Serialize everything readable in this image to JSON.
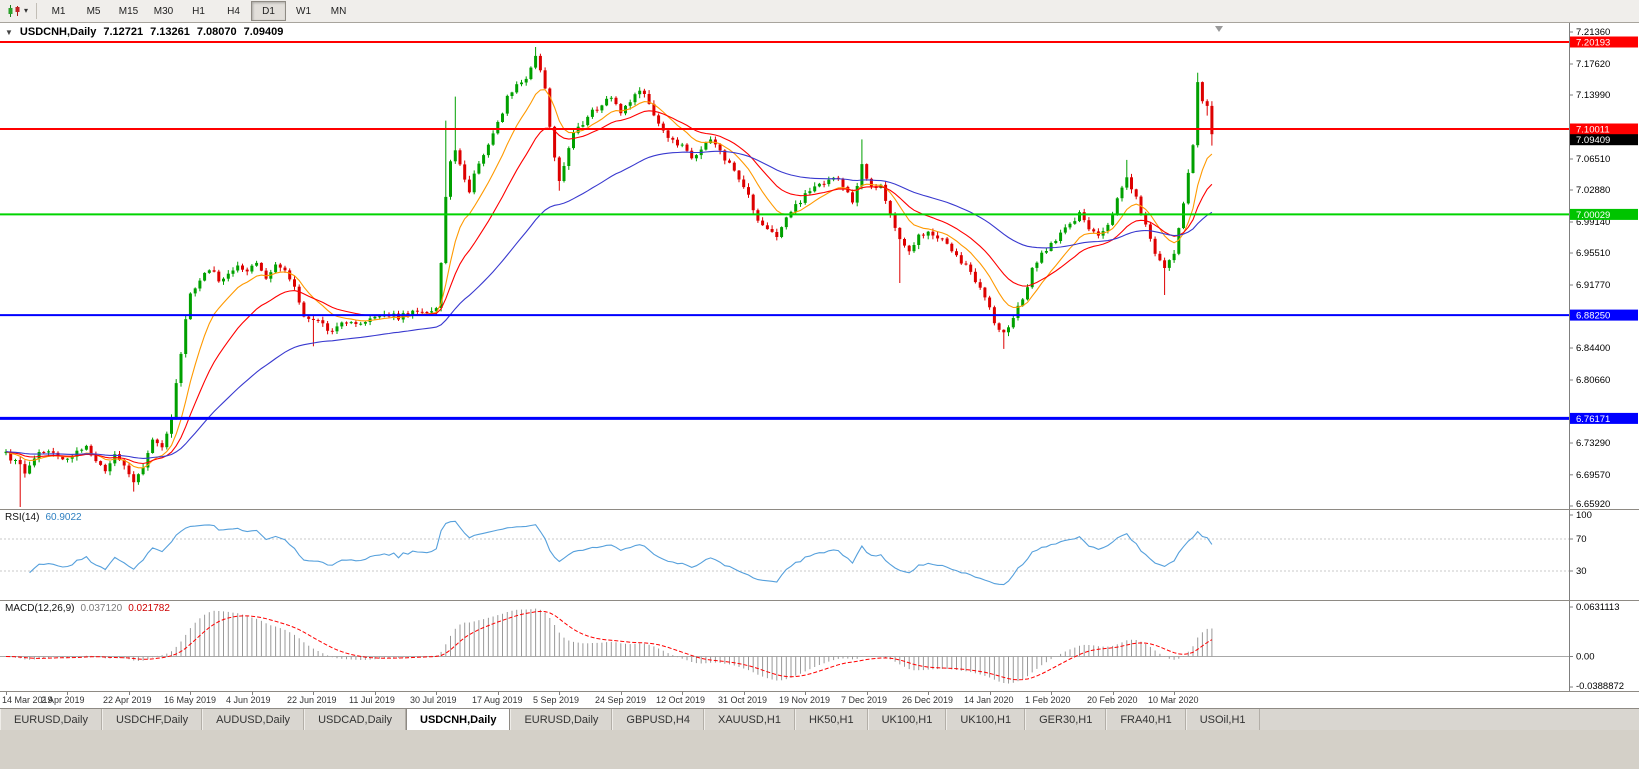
{
  "toolbar": {
    "timeframes": [
      "M1",
      "M5",
      "M15",
      "M30",
      "H1",
      "H4",
      "D1",
      "W1",
      "MN"
    ],
    "active_timeframe": "D1"
  },
  "chart_header": {
    "collapse_icon": "▼",
    "symbol": "USDCNH,Daily",
    "open": "7.12721",
    "high": "7.13261",
    "low": "7.08070",
    "close": "7.09409"
  },
  "price_axis": {
    "plain_labels": [
      {
        "text": "7.21360",
        "price": 7.2136
      },
      {
        "text": "7.17620",
        "price": 7.1762
      },
      {
        "text": "7.13990",
        "price": 7.1399
      },
      {
        "text": "7.06510",
        "price": 7.0651
      },
      {
        "text": "7.02880",
        "price": 7.0288
      },
      {
        "text": "6.99140",
        "price": 6.9914
      },
      {
        "text": "6.95510",
        "price": 6.9551
      },
      {
        "text": "6.91770",
        "price": 6.9177
      },
      {
        "text": "6.84400",
        "price": 6.844
      },
      {
        "text": "6.80660",
        "price": 6.8066
      },
      {
        "text": "6.73290",
        "price": 6.7329
      },
      {
        "text": "6.69570",
        "price": 6.6957
      },
      {
        "text": "6.65920",
        "price": 6.6592
      }
    ],
    "badges": [
      {
        "text": "7.20193",
        "price": 7.20193,
        "bg": "#ff0000",
        "fg": "#ffffff",
        "dy": 0
      },
      {
        "text": "7.10011",
        "price": 7.10011,
        "bg": "#ff0000",
        "fg": "#ffffff",
        "dy": 0
      },
      {
        "text": "7.09409",
        "price": 7.09409,
        "bg": "#000000",
        "fg": "#ffffff",
        "dy": 5.5
      },
      {
        "text": "7.00029",
        "price": 7.00029,
        "bg": "#00c400",
        "fg": "#ffffff",
        "dy": 0
      },
      {
        "text": "6.88250",
        "price": 6.8825,
        "bg": "#0000ff",
        "fg": "#ffffff",
        "dy": 0
      },
      {
        "text": "6.76171",
        "price": 6.76171,
        "bg": "#0000ff",
        "fg": "#ffffff",
        "dy": 0
      }
    ]
  },
  "rsi": {
    "name": "RSI(14)",
    "value": "60.9022",
    "color": "#56a0dc",
    "axis_labels": [
      {
        "text": "100",
        "value": 100
      },
      {
        "text": "70",
        "value": 70
      },
      {
        "text": "30",
        "value": 30
      }
    ]
  },
  "macd": {
    "name": "MACD(12,26,9)",
    "value_main": "0.037120",
    "value_signal": "0.021782",
    "axis_labels": [
      {
        "text": "0.0631113",
        "value": 0.0631113
      },
      {
        "text": "0.00",
        "value": 0
      },
      {
        "text": "-0.0388872",
        "value": -0.0388872
      }
    ]
  },
  "date_axis": {
    "labels": [
      {
        "text": "14 Mar 2019",
        "index": 0
      },
      {
        "text": "2 Apr 2019",
        "index": 13
      },
      {
        "text": "22 Apr 2019",
        "index": 26
      },
      {
        "text": "16 May 2019",
        "index": 39
      },
      {
        "text": "4 Jun 2019",
        "index": 52
      },
      {
        "text": "22 Jun 2019",
        "index": 65
      },
      {
        "text": "11 Jul 2019",
        "index": 78
      },
      {
        "text": "30 Jul 2019",
        "index": 91
      },
      {
        "text": "17 Aug 2019",
        "index": 104
      },
      {
        "text": "5 Sep 2019",
        "index": 117
      },
      {
        "text": "24 Sep 2019",
        "index": 130
      },
      {
        "text": "12 Oct 2019",
        "index": 143
      },
      {
        "text": "31 Oct 2019",
        "index": 156
      },
      {
        "text": "19 Nov 2019",
        "index": 169
      },
      {
        "text": "7 Dec 2019",
        "index": 182
      },
      {
        "text": "26 Dec 2019",
        "index": 195
      },
      {
        "text": "14 Jan 2020",
        "index": 208
      },
      {
        "text": "1 Feb 2020",
        "index": 221
      },
      {
        "text": "20 Feb 2020",
        "index": 234
      },
      {
        "text": "10 Mar 2020",
        "index": 247
      }
    ]
  },
  "tabs": {
    "items": [
      "EURUSD,Daily",
      "USDCHF,Daily",
      "AUDUSD,Daily",
      "USDCAD,Daily",
      "USDCNH,Daily",
      "EURUSD,Daily",
      "GBPUSD,H4",
      "XAUUSD,H1",
      "HK50,H1",
      "UK100,H1",
      "UK100,H1",
      "GER30,H1",
      "FRA40,H1",
      "USOil,H1"
    ],
    "active_index": 4
  },
  "chart_data": {
    "type": "candlestick",
    "title": "USDCNH,Daily",
    "timeframe": "Daily",
    "current_ohlc": {
      "open": 7.12721,
      "high": 7.13261,
      "low": 7.0807,
      "close": 7.09409
    },
    "y_range": [
      6.6592,
      7.2136
    ],
    "x_axis_dates": [
      "14 Mar 2019",
      "2 Apr 2019",
      "22 Apr 2019",
      "16 May 2019",
      "4 Jun 2019",
      "22 Jun 2019",
      "11 Jul 2019",
      "30 Jul 2019",
      "17 Aug 2019",
      "5 Sep 2019",
      "24 Sep 2019",
      "12 Oct 2019",
      "31 Oct 2019",
      "19 Nov 2019",
      "7 Dec 2019",
      "26 Dec 2019",
      "14 Jan 2020",
      "1 Feb 2020",
      "20 Feb 2020",
      "10 Mar 2020"
    ],
    "horizontal_levels": [
      {
        "price": 7.20193,
        "color": "#ff0000",
        "width": 2
      },
      {
        "price": 7.10011,
        "color": "#ff0000",
        "width": 2
      },
      {
        "price": 7.00029,
        "color": "#00d400",
        "width": 2
      },
      {
        "price": 6.8825,
        "color": "#0000ff",
        "width": 2
      },
      {
        "price": 6.76171,
        "color": "#0000ff",
        "width": 3
      }
    ],
    "colors": {
      "up": "#00a000",
      "down": "#dd0000"
    },
    "moving_averages": [
      {
        "period": 10,
        "method": "ema",
        "color": "#ff9900"
      },
      {
        "period": 21,
        "method": "ema",
        "color": "#ff0000"
      },
      {
        "period": 55,
        "method": "ema",
        "color": "#3939cf"
      }
    ],
    "indicators": [
      {
        "name": "RSI",
        "period": 14,
        "current": 60.9022,
        "levels": [
          30,
          70
        ]
      },
      {
        "name": "MACD",
        "fast": 12,
        "slow": 26,
        "signal": 9,
        "current_main": 0.03712,
        "current_signal": 0.021782,
        "axis_max": 0.0631113,
        "axis_min": -0.0388872
      }
    ],
    "candles": {
      "count": 256,
      "seed": 20200317,
      "close_waypoints": [
        [
          0,
          6.72
        ],
        [
          2,
          6.71
        ],
        [
          4,
          6.7
        ],
        [
          6,
          6.718
        ],
        [
          9,
          6.724
        ],
        [
          11,
          6.716
        ],
        [
          13,
          6.714
        ],
        [
          15,
          6.722
        ],
        [
          17,
          6.73
        ],
        [
          19,
          6.712
        ],
        [
          21,
          6.7
        ],
        [
          23,
          6.722
        ],
        [
          25,
          6.708
        ],
        [
          27,
          6.688
        ],
        [
          29,
          6.706
        ],
        [
          31,
          6.734
        ],
        [
          33,
          6.73
        ],
        [
          35,
          6.76
        ],
        [
          37,
          6.84
        ],
        [
          39,
          6.905
        ],
        [
          41,
          6.92
        ],
        [
          43,
          6.938
        ],
        [
          45,
          6.922
        ],
        [
          47,
          6.93
        ],
        [
          49,
          6.94
        ],
        [
          51,
          6.936
        ],
        [
          53,
          6.945
        ],
        [
          55,
          6.928
        ],
        [
          57,
          6.94
        ],
        [
          59,
          6.936
        ],
        [
          61,
          6.918
        ],
        [
          63,
          6.884
        ],
        [
          65,
          6.878
        ],
        [
          67,
          6.87
        ],
        [
          69,
          6.862
        ],
        [
          71,
          6.874
        ],
        [
          74,
          6.87
        ],
        [
          77,
          6.878
        ],
        [
          80,
          6.884
        ],
        [
          83,
          6.88
        ],
        [
          86,
          6.886
        ],
        [
          89,
          6.884
        ],
        [
          91,
          6.892
        ],
        [
          92,
          6.94
        ],
        [
          93,
          7.02
        ],
        [
          94,
          7.06
        ],
        [
          95,
          7.078
        ],
        [
          96,
          7.058
        ],
        [
          97,
          7.04
        ],
        [
          98,
          7.028
        ],
        [
          100,
          7.06
        ],
        [
          102,
          7.084
        ],
        [
          104,
          7.108
        ],
        [
          106,
          7.135
        ],
        [
          108,
          7.15
        ],
        [
          110,
          7.16
        ],
        [
          112,
          7.186
        ],
        [
          113,
          7.17
        ],
        [
          114,
          7.145
        ],
        [
          115,
          7.105
        ],
        [
          116,
          7.065
        ],
        [
          117,
          7.042
        ],
        [
          118,
          7.06
        ],
        [
          120,
          7.092
        ],
        [
          122,
          7.108
        ],
        [
          124,
          7.12
        ],
        [
          126,
          7.128
        ],
        [
          128,
          7.138
        ],
        [
          130,
          7.12
        ],
        [
          132,
          7.134
        ],
        [
          134,
          7.146
        ],
        [
          136,
          7.13
        ],
        [
          138,
          7.104
        ],
        [
          140,
          7.092
        ],
        [
          143,
          7.08
        ],
        [
          145,
          7.068
        ],
        [
          147,
          7.076
        ],
        [
          149,
          7.086
        ],
        [
          151,
          7.072
        ],
        [
          153,
          7.06
        ],
        [
          155,
          7.04
        ],
        [
          157,
          7.022
        ],
        [
          159,
          6.996
        ],
        [
          161,
          6.982
        ],
        [
          163,
          6.976
        ],
        [
          165,
          6.996
        ],
        [
          167,
          7.01
        ],
        [
          169,
          7.022
        ],
        [
          171,
          7.03
        ],
        [
          173,
          7.038
        ],
        [
          175,
          7.044
        ],
        [
          177,
          7.034
        ],
        [
          179,
          7.014
        ],
        [
          181,
          7.056
        ],
        [
          183,
          7.034
        ],
        [
          185,
          7.032
        ],
        [
          187,
          7.0
        ],
        [
          189,
          6.968
        ],
        [
          191,
          6.96
        ],
        [
          193,
          6.974
        ],
        [
          195,
          6.982
        ],
        [
          197,
          6.974
        ],
        [
          199,
          6.964
        ],
        [
          201,
          6.952
        ],
        [
          203,
          6.94
        ],
        [
          205,
          6.924
        ],
        [
          207,
          6.904
        ],
        [
          209,
          6.874
        ],
        [
          211,
          6.86
        ],
        [
          213,
          6.88
        ],
        [
          215,
          6.904
        ],
        [
          217,
          6.934
        ],
        [
          219,
          6.954
        ],
        [
          221,
          6.966
        ],
        [
          223,
          6.978
        ],
        [
          225,
          6.99
        ],
        [
          227,
          7.0
        ],
        [
          229,
          6.986
        ],
        [
          231,
          6.974
        ],
        [
          233,
          6.986
        ],
        [
          235,
          7.022
        ],
        [
          237,
          7.042
        ],
        [
          239,
          7.018
        ],
        [
          241,
          6.988
        ],
        [
          243,
          6.958
        ],
        [
          245,
          6.934
        ],
        [
          247,
          6.956
        ],
        [
          249,
          7.016
        ],
        [
          251,
          7.078
        ],
        [
          252,
          7.15
        ],
        [
          253,
          7.132
        ],
        [
          254,
          7.12
        ],
        [
          255,
          7.09409
        ]
      ],
      "spikes": [
        [
          3,
          "low",
          6.658
        ],
        [
          27,
          "low",
          6.676
        ],
        [
          65,
          "low",
          6.846
        ],
        [
          93,
          "high",
          7.11
        ],
        [
          95,
          "high",
          7.138
        ],
        [
          112,
          "high",
          7.196
        ],
        [
          117,
          "low",
          7.028
        ],
        [
          181,
          "high",
          7.088
        ],
        [
          189,
          "low",
          6.92
        ],
        [
          211,
          "low",
          6.843
        ],
        [
          237,
          "high",
          7.064
        ],
        [
          245,
          "low",
          6.906
        ],
        [
          252,
          "high",
          7.166
        ]
      ],
      "last": {
        "open": 7.12721,
        "high": 7.13261,
        "low": 7.0807,
        "close": 7.09409
      }
    }
  }
}
